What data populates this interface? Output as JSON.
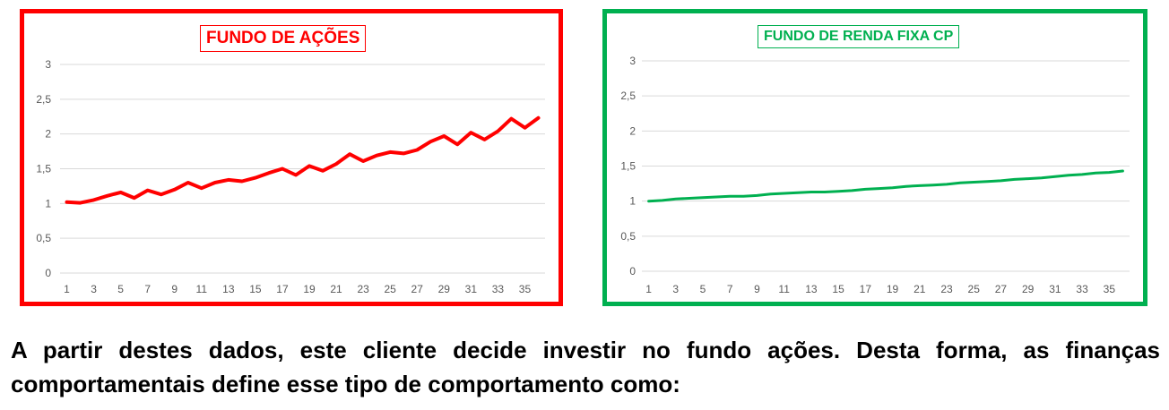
{
  "colors": {
    "left_frame": "#ff0000",
    "left_line": "#ff0000",
    "right_frame": "#00b050",
    "right_line": "#00b050",
    "gridline": "#d9d9d9",
    "tick_text": "#595959"
  },
  "question": {
    "text": "A partir destes dados, este cliente decide investir no fundo ações. Desta forma, as finanças comportamentais define esse tipo de comportamento como:"
  },
  "chart_data": [
    {
      "type": "line",
      "title": "FUNDO DE AÇÕES",
      "xlabel": "",
      "ylabel": "",
      "x": [
        1,
        2,
        3,
        4,
        5,
        6,
        7,
        8,
        9,
        10,
        11,
        12,
        13,
        14,
        15,
        16,
        17,
        18,
        19,
        20,
        21,
        22,
        23,
        24,
        25,
        26,
        27,
        28,
        29,
        30,
        31,
        32,
        33,
        34,
        35,
        36
      ],
      "x_tick_labels": [
        "1",
        "3",
        "5",
        "7",
        "9",
        "11",
        "13",
        "15",
        "17",
        "19",
        "21",
        "23",
        "25",
        "27",
        "29",
        "31",
        "33",
        "35"
      ],
      "y_tick_labels": [
        "0",
        "0,5",
        "1",
        "1,5",
        "2",
        "2,5",
        "3"
      ],
      "ylim": [
        0,
        3
      ],
      "grid": true,
      "legend": "none",
      "series": [
        {
          "color": "#ff0000",
          "values": [
            1.02,
            1.01,
            1.05,
            1.11,
            1.16,
            1.08,
            1.19,
            1.13,
            1.2,
            1.3,
            1.22,
            1.3,
            1.34,
            1.32,
            1.37,
            1.44,
            1.5,
            1.41,
            1.54,
            1.47,
            1.57,
            1.71,
            1.61,
            1.69,
            1.74,
            1.72,
            1.77,
            1.89,
            1.97,
            1.85,
            2.02,
            1.92,
            2.04,
            2.22,
            2.09,
            2.23
          ]
        }
      ]
    },
    {
      "type": "line",
      "title": "FUNDO DE RENDA FIXA CP",
      "xlabel": "",
      "ylabel": "",
      "x": [
        1,
        2,
        3,
        4,
        5,
        6,
        7,
        8,
        9,
        10,
        11,
        12,
        13,
        14,
        15,
        16,
        17,
        18,
        19,
        20,
        21,
        22,
        23,
        24,
        25,
        26,
        27,
        28,
        29,
        30,
        31,
        32,
        33,
        34,
        35,
        36
      ],
      "x_tick_labels": [
        "1",
        "3",
        "5",
        "7",
        "9",
        "11",
        "13",
        "15",
        "17",
        "19",
        "21",
        "23",
        "25",
        "27",
        "29",
        "31",
        "33",
        "35"
      ],
      "y_tick_labels": [
        "0",
        "0,5",
        "1",
        "1,5",
        "2",
        "2,5",
        "3"
      ],
      "ylim": [
        0,
        3
      ],
      "grid": true,
      "legend": "none",
      "series": [
        {
          "color": "#00b050",
          "values": [
            1.0,
            1.01,
            1.03,
            1.04,
            1.05,
            1.06,
            1.07,
            1.07,
            1.08,
            1.1,
            1.11,
            1.12,
            1.13,
            1.13,
            1.14,
            1.15,
            1.17,
            1.18,
            1.19,
            1.21,
            1.22,
            1.23,
            1.24,
            1.26,
            1.27,
            1.28,
            1.29,
            1.31,
            1.32,
            1.33,
            1.35,
            1.37,
            1.38,
            1.4,
            1.41,
            1.43
          ]
        }
      ]
    }
  ]
}
